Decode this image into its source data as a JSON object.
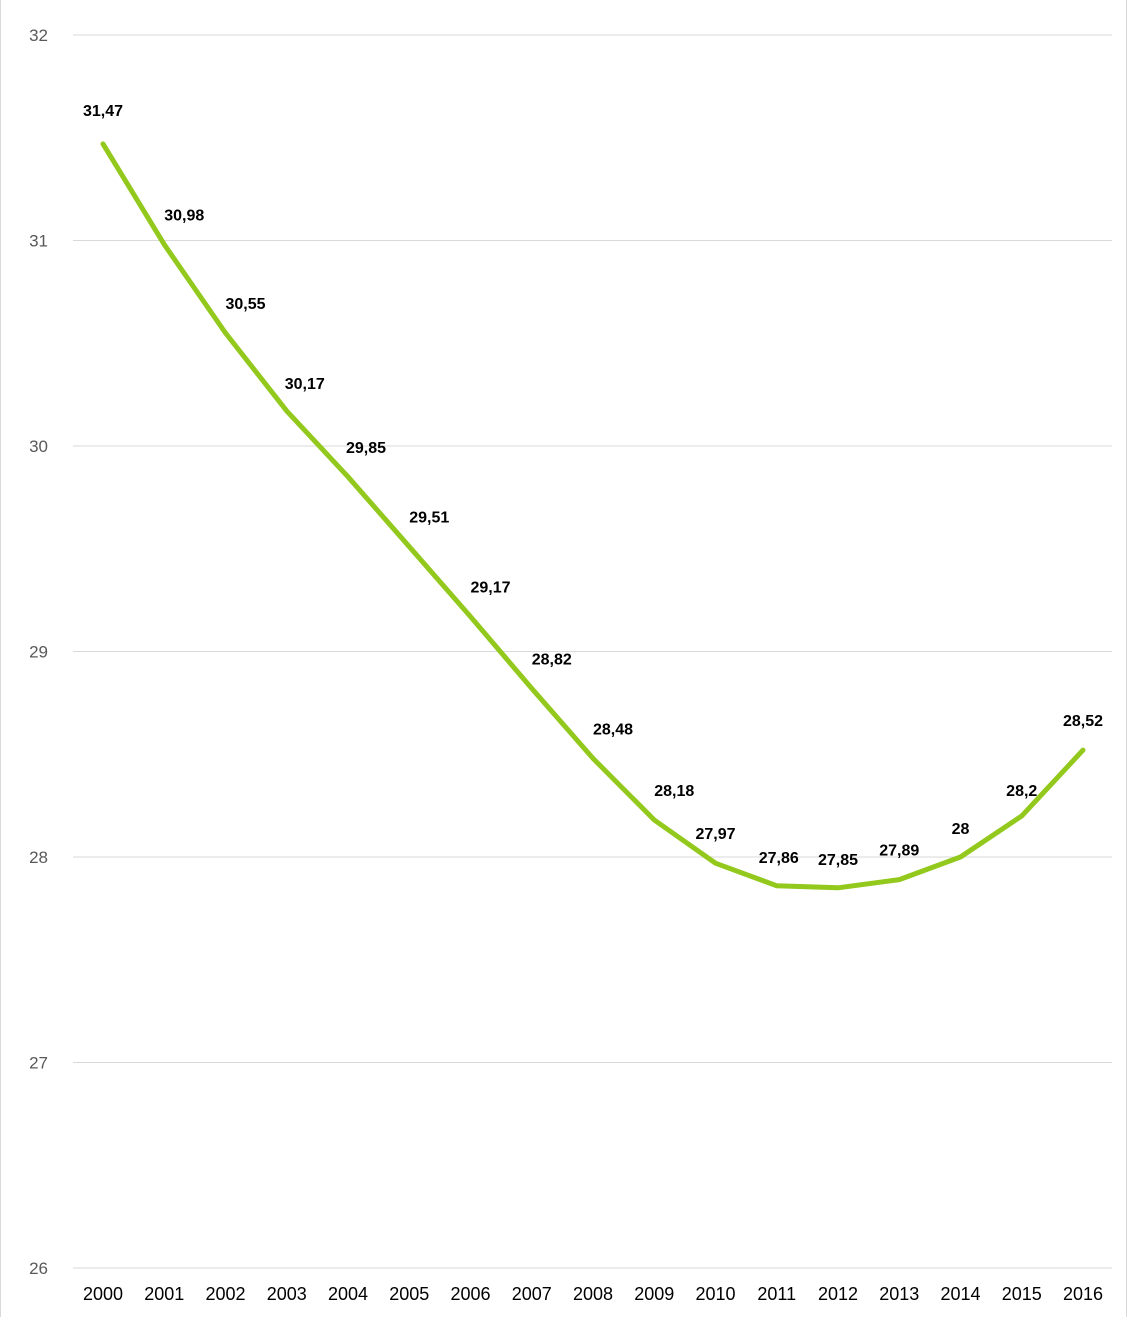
{
  "chart_data": {
    "type": "line",
    "title": "",
    "xlabel": "",
    "ylabel": "",
    "x": [
      "2000",
      "2001",
      "2002",
      "2003",
      "2004",
      "2005",
      "2006",
      "2007",
      "2008",
      "2009",
      "2010",
      "2011",
      "2012",
      "2013",
      "2014",
      "2015",
      "2016"
    ],
    "values": [
      31.47,
      30.98,
      30.55,
      30.17,
      29.85,
      29.51,
      29.17,
      28.82,
      28.48,
      28.18,
      27.97,
      27.86,
      27.85,
      27.89,
      28.0,
      28.2,
      28.52
    ],
    "data_labels": [
      "31,47",
      "30,98",
      "30,55",
      "30,17",
      "29,85",
      "29,51",
      "29,17",
      "28,82",
      "28,48",
      "28,18",
      "27,97",
      "27,86",
      "27,85",
      "27,89",
      "28",
      "28,2",
      "28,52"
    ],
    "ylim": [
      26,
      32
    ],
    "y_ticks": [
      "26",
      "27",
      "28",
      "29",
      "30",
      "31",
      "32"
    ],
    "grid": true,
    "legend": "none",
    "colors": {
      "line": "#92c91c",
      "grid": "#d9d9d9",
      "tick_text": "#595959",
      "label_text": "#000000"
    }
  }
}
